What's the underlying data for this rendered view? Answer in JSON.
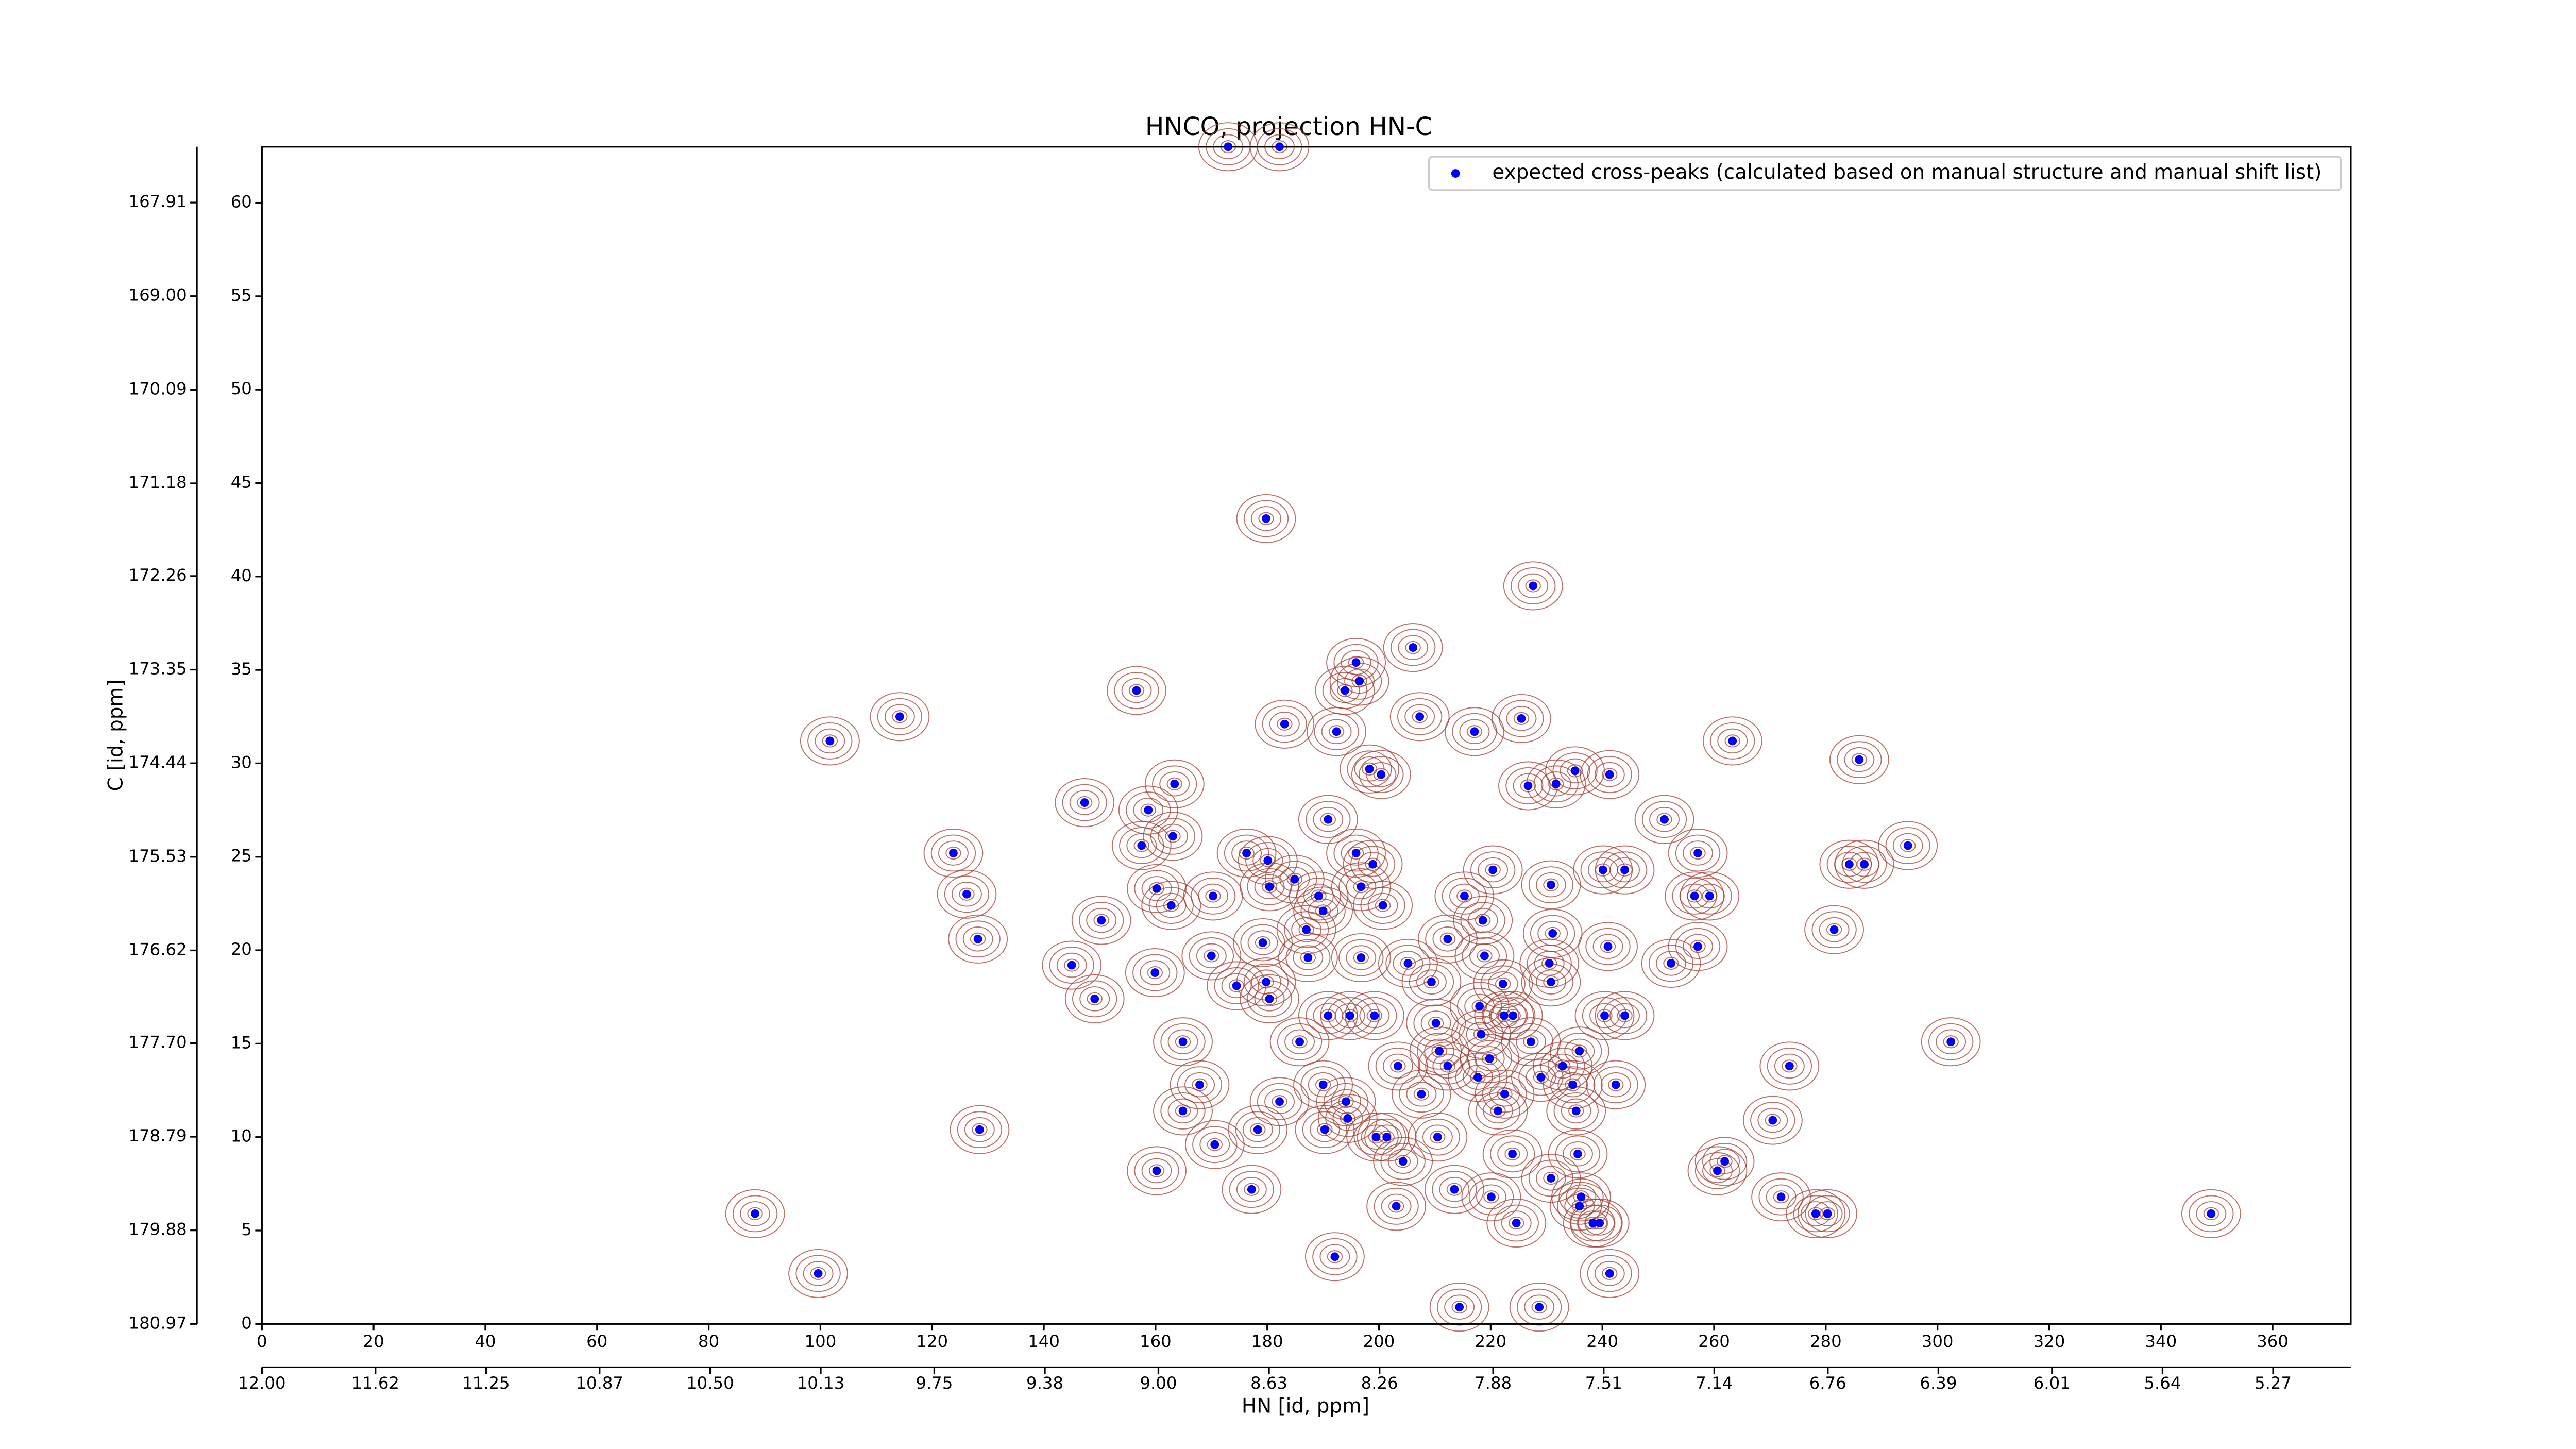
{
  "chart_data": {
    "type": "scatter",
    "title": "HNCO, projection HN-C",
    "x_label": "HN [id, ppm]",
    "y_label": "C [id, ppm]",
    "xlim": [
      0,
      374
    ],
    "ylim": [
      0,
      63
    ],
    "xticks": [
      0,
      20,
      40,
      60,
      80,
      100,
      120,
      140,
      160,
      180,
      200,
      220,
      240,
      260,
      280,
      300,
      320,
      340,
      360
    ],
    "yticks": [
      0,
      5,
      10,
      15,
      20,
      25,
      30,
      35,
      40,
      45,
      50,
      55,
      60
    ],
    "x2lim": [
      12.0,
      5.01
    ],
    "x2ticks": [
      {
        "value": 12,
        "label": "12.00"
      },
      11.62,
      11.25,
      10.87,
      {
        "value": 10.5,
        "label": "10.50"
      },
      10.13,
      9.75,
      9.38,
      {
        "value": 9,
        "label": "9.00"
      },
      8.63,
      8.26,
      7.88,
      7.51,
      7.14,
      6.76,
      6.39,
      6.01,
      5.64,
      5.27
    ],
    "y2lim": [
      180.97,
      167.26
    ],
    "y2ticks": [
      180.97,
      179.88,
      178.79,
      {
        "value": 177.7,
        "label": "177.70"
      },
      176.62,
      175.53,
      174.44,
      173.35,
      172.26,
      171.18,
      170.09,
      {
        "value": 169,
        "label": "169.00"
      },
      167.91
    ],
    "legend": "upper right",
    "contour_color": "#a0342a",
    "series": [
      {
        "name": "expected cross-peaks (calculated based on manual structure and manual shift list)",
        "color": "#0000ff",
        "x": [
          173,
          182.2,
          179.8,
          227.6,
          206.1,
          195.9,
          196.5,
          193.9,
          156.6,
          207.3,
          183.1,
          192.4,
          217.1,
          225.5,
          263.3,
          101.7,
          114.2,
          198.3,
          200.4,
          235.1,
          231.7,
          241.3,
          286,
          163.4,
          147.3,
          158.7,
          226.7,
          190.9,
          163.1,
          251.1,
          294.7,
          123.8,
          157.5,
          176.3,
          180.1,
          195.9,
          198.9,
          284.2,
          286.9,
          220.4,
          240.1,
          244,
          257.1,
          184.9,
          180.4,
          196.8,
          160.2,
          126.2,
          170.3,
          256.5,
          259.2,
          215.3,
          162.8,
          189.2,
          190,
          230.8,
          200.7,
          150.3,
          218.6,
          281.5,
          187,
          231.1,
          128.2,
          212.3,
          241,
          257.1,
          179.2,
          196.8,
          205.2,
          170,
          187.3,
          218.9,
          159.9,
          145,
          230.5,
          252.3,
          209.4,
          179.8,
          230.8,
          174.5,
          149.1,
          180.4,
          222.2,
          218,
          190.9,
          194.8,
          199.2,
          222.4,
          224,
          240.4,
          244,
          210.2,
          185.8,
          164.9,
          218.3,
          210.8,
          227.2,
          219.8,
          235.9,
          302.4,
          212.3,
          203.4,
          232.9,
          273.5,
          229,
          217.7,
          167.9,
          190,
          242.4,
          234.7,
          222.5,
          194.1,
          207.6,
          182.2,
          164.9,
          221.3,
          235.3,
          194.4,
          270.5,
          128.5,
          178.3,
          210.5,
          199.5,
          201.4,
          190.3,
          170.6,
          223.9,
          235.6,
          261.9,
          260.6,
          160.2,
          204.3,
          230.8,
          177.2,
          213.5,
          220.1,
          272,
          236.2,
          203.1,
          235.9,
          88.3,
          278.2,
          280.3,
          349,
          224.6,
          238.3,
          239.5,
          192.1,
          99.6,
          241.3,
          214.4,
          228.7
        ],
        "values": [
          63,
          63,
          43.1,
          39.5,
          36.2,
          35.4,
          34.4,
          33.9,
          33.9,
          32.5,
          32.1,
          31.7,
          31.7,
          32.4,
          31.2,
          31.2,
          32.5,
          29.7,
          29.4,
          29.6,
          28.9,
          29.4,
          30.2,
          28.9,
          27.9,
          27.5,
          28.8,
          27,
          26.1,
          27,
          25.6,
          25.2,
          25.6,
          25.2,
          24.8,
          25.2,
          24.6,
          24.6,
          24.6,
          24.3,
          24.3,
          24.3,
          25.2,
          23.8,
          23.4,
          23.4,
          23.3,
          23,
          22.9,
          22.9,
          22.9,
          22.9,
          22.4,
          22.9,
          22.1,
          23.5,
          22.4,
          21.6,
          21.6,
          21.1,
          21.1,
          20.9,
          20.6,
          20.6,
          20.2,
          20.2,
          20.4,
          19.6,
          19.3,
          19.7,
          19.6,
          19.7,
          18.8,
          19.2,
          19.3,
          19.3,
          18.3,
          18.3,
          18.3,
          18.1,
          17.4,
          17.4,
          18.2,
          17,
          16.5,
          16.5,
          16.5,
          16.5,
          16.5,
          16.5,
          16.5,
          16.1,
          15.1,
          15.1,
          15.5,
          14.6,
          15.1,
          14.2,
          14.6,
          15.1,
          13.8,
          13.8,
          13.8,
          13.8,
          13.2,
          13.2,
          12.8,
          12.8,
          12.8,
          12.8,
          12.3,
          11.9,
          12.3,
          11.9,
          11.4,
          11.4,
          11.4,
          11,
          10.9,
          10.4,
          10.4,
          10,
          10,
          10,
          10.4,
          9.6,
          9.1,
          9.1,
          8.7,
          8.2,
          8.2,
          8.7,
          7.8,
          7.2,
          7.2,
          6.8,
          6.8,
          6.8,
          6.3,
          6.3,
          5.9,
          5.9,
          5.9,
          5.9,
          5.4,
          5.4,
          5.4,
          3.6,
          2.7,
          2.7,
          0.9,
          0.9
        ]
      }
    ]
  }
}
